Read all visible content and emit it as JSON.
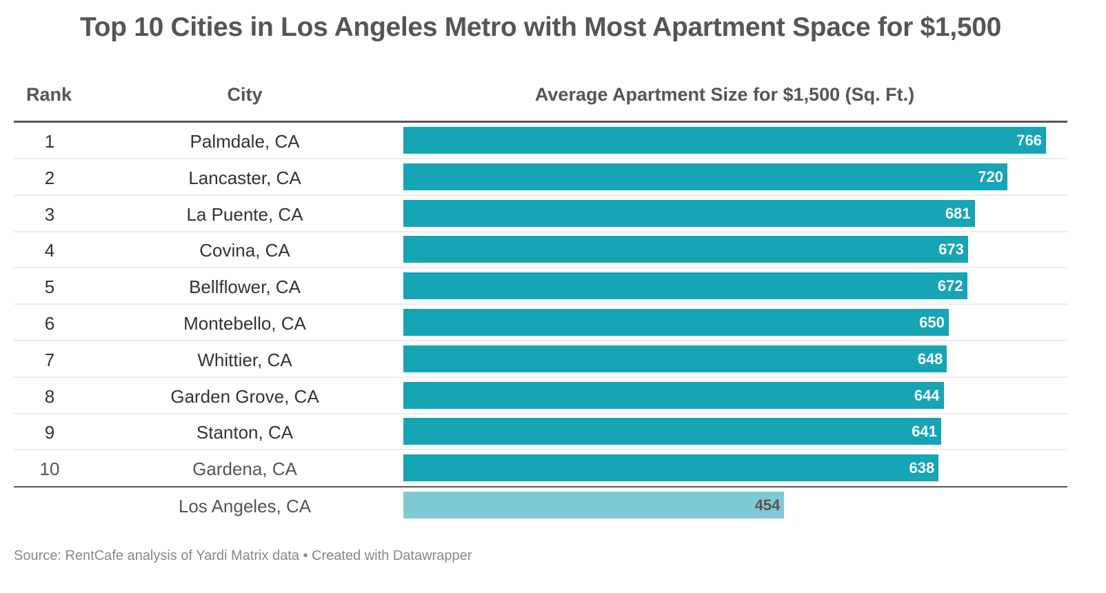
{
  "title": "Top 10 Cities in Los Angeles Metro with Most Apartment Space for $1,500",
  "headers": {
    "rank": "Rank",
    "city": "City",
    "value": "Average Apartment Size for $1,500 (Sq. Ft.)"
  },
  "colors": {
    "bar": "#15a5b5",
    "bar_reference": "#7fcbd4",
    "text": "#333333",
    "header": "#555555"
  },
  "source": "Source: RentCafe analysis of Yardi Matrix data • Created with Datawrapper",
  "chart_data": {
    "type": "table",
    "title": "Top 10 Cities in Los Angeles Metro with Most Apartment Space for $1,500",
    "columns": [
      "Rank",
      "City",
      "Average Apartment Size for $1,500 (Sq. Ft.)"
    ],
    "xlim": [
      0,
      766
    ],
    "rows": [
      {
        "rank": "1",
        "city": "Palmdale, CA",
        "value": 766
      },
      {
        "rank": "2",
        "city": "Lancaster, CA",
        "value": 720
      },
      {
        "rank": "3",
        "city": "La Puente, CA",
        "value": 681
      },
      {
        "rank": "4",
        "city": "Covina, CA",
        "value": 673
      },
      {
        "rank": "5",
        "city": "Bellflower, CA",
        "value": 672
      },
      {
        "rank": "6",
        "city": "Montebello, CA",
        "value": 650
      },
      {
        "rank": "7",
        "city": "Whittier, CA",
        "value": 648
      },
      {
        "rank": "8",
        "city": "Garden Grove, CA",
        "value": 644
      },
      {
        "rank": "9",
        "city": "Stanton, CA",
        "value": 641
      },
      {
        "rank": "10",
        "city": "Gardena, CA",
        "value": 638
      }
    ],
    "reference": {
      "rank": "",
      "city": "Los Angeles, CA",
      "value": 454
    },
    "source": "Source: RentCafe analysis of Yardi Matrix data • Created with Datawrapper"
  }
}
